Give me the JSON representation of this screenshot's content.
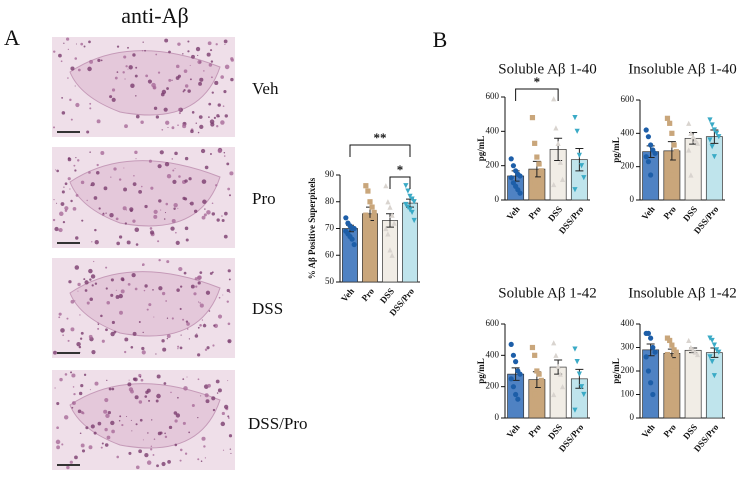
{
  "figure_title": "anti-Aβ",
  "panel_a": "A",
  "panel_b": "B",
  "image_labels": [
    "Veh",
    "Pro",
    "DSS",
    "DSS/Pro"
  ],
  "chart_data": [
    {
      "type": "bar",
      "ylabel": "% Aβ Positive Superpixels",
      "categories": [
        "Veh",
        "Pro",
        "DSS",
        "DSS/Pro"
      ],
      "values": [
        70,
        75.5,
        73,
        79.5
      ],
      "errors": [
        1.2,
        2.5,
        2.5,
        1.5
      ],
      "colors": [
        "#4f82c3",
        "#c9a67b",
        "#f1ede6",
        "#bfe4ec"
      ],
      "point_colors": [
        "#1d5ea8",
        "#c9a67b",
        "#d9d4cf",
        "#3aaac6"
      ],
      "markers": [
        "circle",
        "square",
        "triangle",
        "triangle-down"
      ],
      "points": [
        [
          74,
          72,
          71,
          70,
          70,
          69,
          68,
          67,
          66,
          64
        ],
        [
          86,
          84,
          80,
          78,
          76,
          75,
          73,
          70,
          67,
          63
        ],
        [
          86,
          80,
          78,
          75,
          72,
          70,
          68,
          62,
          60
        ],
        [
          86,
          84,
          82,
          81,
          80,
          79,
          78,
          77,
          76,
          73
        ]
      ],
      "ylim": [
        50,
        90
      ],
      "yticks": [
        50,
        60,
        70,
        80,
        90
      ],
      "significance": [
        {
          "between": [
            0,
            3
          ],
          "label": "**"
        },
        {
          "between": [
            2,
            3
          ],
          "label": "*"
        }
      ]
    },
    {
      "type": "bar",
      "title": "Soluble Aβ 1-40",
      "ylabel": "pg/mL",
      "categories": [
        "Veh",
        "Pro",
        "DSS",
        "DSS/Pro"
      ],
      "values": [
        140,
        180,
        295,
        235
      ],
      "errors": [
        30,
        45,
        65,
        65
      ],
      "colors": [
        "#4f82c3",
        "#c9a67b",
        "#f1ede6",
        "#bfe4ec"
      ],
      "point_colors": [
        "#1d5ea8",
        "#c9a67b",
        "#d9d4cf",
        "#3aaac6"
      ],
      "markers": [
        "circle",
        "square",
        "triangle",
        "triangle-down"
      ],
      "points": [
        [
          240,
          200,
          170,
          150,
          140,
          130,
          100,
          80,
          60,
          40
        ],
        [
          480,
          330,
          250,
          210,
          170,
          130,
          100,
          60,
          30
        ],
        [
          590,
          420,
          330,
          220,
          120,
          90
        ],
        [
          480,
          400,
          260,
          200,
          130,
          60
        ]
      ],
      "ylim": [
        0,
        600
      ],
      "yticks": [
        0,
        200,
        400,
        600
      ],
      "significance": [
        {
          "between": [
            0,
            2
          ],
          "label": "*"
        }
      ]
    },
    {
      "type": "bar",
      "title": "Insoluble Aβ 1-40",
      "ylabel": "pg/mL",
      "categories": [
        "Veh",
        "Pro",
        "DSS",
        "DSS/Pro"
      ],
      "values": [
        290,
        295,
        370,
        380
      ],
      "errors": [
        35,
        55,
        35,
        40
      ],
      "colors": [
        "#4f82c3",
        "#c9a67b",
        "#f1ede6",
        "#bfe4ec"
      ],
      "point_colors": [
        "#1d5ea8",
        "#c9a67b",
        "#d9d4cf",
        "#3aaac6"
      ],
      "markers": [
        "circle",
        "square",
        "triangle",
        "triangle-down"
      ],
      "points": [
        [
          420,
          380,
          330,
          300,
          280,
          260,
          230,
          150
        ],
        [
          490,
          460,
          400,
          330,
          290,
          250,
          200,
          150,
          100,
          80
        ],
        [
          460,
          400,
          380,
          360,
          340,
          300,
          150
        ],
        [
          480,
          450,
          420,
          400,
          380,
          360,
          320,
          260
        ]
      ],
      "ylim": [
        0,
        600
      ],
      "yticks": [
        0,
        200,
        400,
        600
      ]
    },
    {
      "type": "bar",
      "title": "Soluble Aβ 1-42",
      "ylabel": "pg/mL",
      "categories": [
        "Veh",
        "Pro",
        "DSS",
        "DSS/Pro"
      ],
      "values": [
        280,
        245,
        325,
        250
      ],
      "errors": [
        40,
        50,
        45,
        60
      ],
      "colors": [
        "#4f82c3",
        "#c9a67b",
        "#f1ede6",
        "#bfe4ec"
      ],
      "point_colors": [
        "#1d5ea8",
        "#c9a67b",
        "#d9d4cf",
        "#3aaac6"
      ],
      "markers": [
        "circle",
        "square",
        "triangle",
        "triangle-down"
      ],
      "points": [
        [
          470,
          400,
          360,
          300,
          280,
          250,
          200,
          150,
          120
        ],
        [
          450,
          400,
          300,
          280,
          240,
          200,
          150,
          120,
          80
        ],
        [
          480,
          400,
          330,
          280,
          200,
          150
        ],
        [
          440,
          360,
          280,
          200,
          150,
          50
        ]
      ],
      "ylim": [
        0,
        600
      ],
      "yticks": [
        0,
        200,
        400,
        600
      ]
    },
    {
      "type": "bar",
      "title": "Insoluble Aβ 1-42",
      "ylabel": "pg/mL",
      "categories": [
        "Veh",
        "Pro",
        "DSS",
        "DSS/Pro"
      ],
      "values": [
        290,
        275,
        288,
        278
      ],
      "errors": [
        25,
        18,
        10,
        20
      ],
      "colors": [
        "#4f82c3",
        "#c9a67b",
        "#f1ede6",
        "#bfe4ec"
      ],
      "point_colors": [
        "#1d5ea8",
        "#c9a67b",
        "#d9d4cf",
        "#3aaac6"
      ],
      "markers": [
        "circle",
        "square",
        "triangle",
        "triangle-down"
      ],
      "points": [
        [
          360,
          360,
          340,
          300,
          280,
          260,
          200,
          150,
          100
        ],
        [
          340,
          330,
          310,
          290,
          280,
          270,
          250,
          230,
          200
        ],
        [
          330,
          300,
          290,
          280,
          270
        ],
        [
          340,
          330,
          310,
          290,
          280,
          260,
          240,
          180
        ]
      ],
      "ylim": [
        0,
        400
      ],
      "yticks": [
        0,
        100,
        200,
        300,
        400
      ]
    }
  ]
}
